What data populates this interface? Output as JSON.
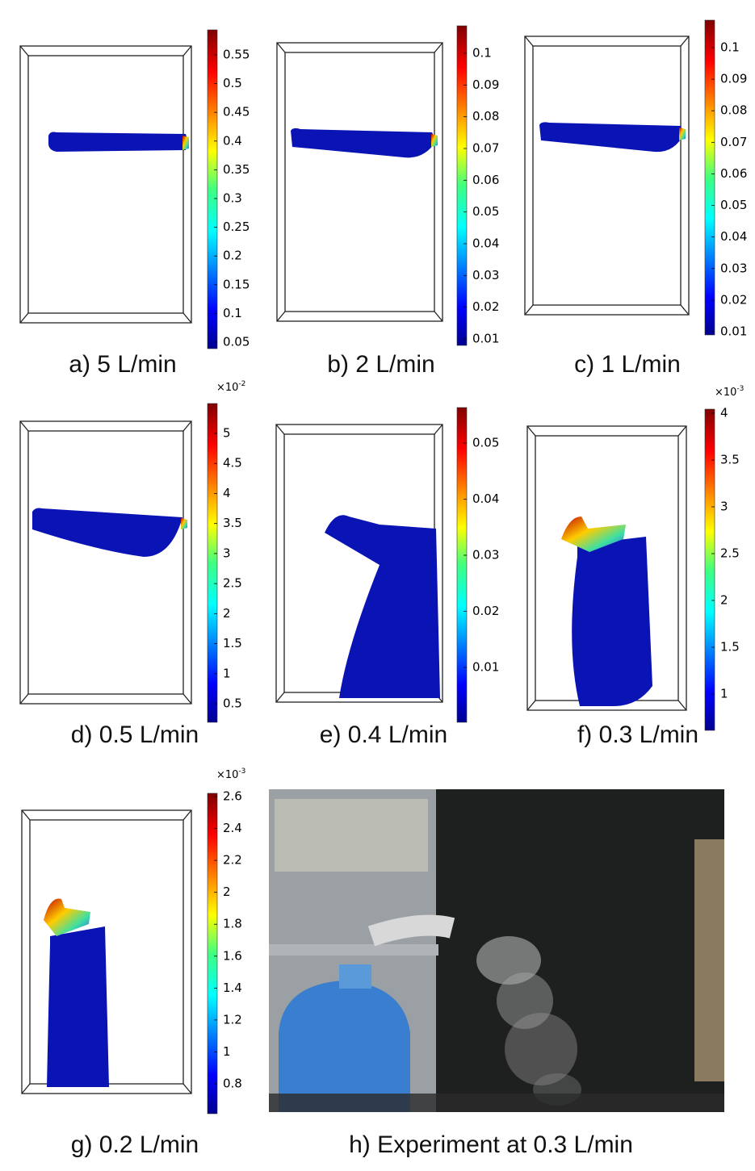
{
  "panels": [
    {
      "caption": "a) 5 L/min",
      "colorbar": {
        "ticks": [
          "0.55",
          "0.5",
          "0.45",
          "0.4",
          "0.35",
          "0.3",
          "0.25",
          "0.2",
          "0.15",
          "0.1",
          "0.05"
        ]
      }
    },
    {
      "caption": "b) 2 L/min",
      "colorbar": {
        "ticks": [
          "0.1",
          "0.09",
          "0.08",
          "0.07",
          "0.06",
          "0.05",
          "0.04",
          "0.03",
          "0.02",
          "0.01"
        ]
      }
    },
    {
      "caption": "c) 1 L/min",
      "colorbar": {
        "ticks": [
          "0.1",
          "0.09",
          "0.08",
          "0.07",
          "0.06",
          "0.05",
          "0.04",
          "0.03",
          "0.02",
          "0.01"
        ]
      }
    },
    {
      "caption": "d) 0.5 L/min",
      "colorbar": {
        "multiplier": {
          "base": "×10",
          "exponent": "-2"
        },
        "ticks": [
          "5",
          "4.5",
          "4",
          "3.5",
          "3",
          "2.5",
          "2",
          "1.5",
          "1",
          "0.5"
        ]
      }
    },
    {
      "caption": "e) 0.4 L/min",
      "colorbar": {
        "ticks": [
          "0.05",
          "0.04",
          "0.03",
          "0.02",
          "0.01"
        ]
      }
    },
    {
      "caption": "f) 0.3 L/min",
      "colorbar": {
        "multiplier": {
          "base": "×10",
          "exponent": "-3"
        },
        "ticks": [
          "4",
          "3.5",
          "3",
          "2.5",
          "2",
          "1.5",
          "1"
        ]
      }
    },
    {
      "caption": "g) 0.2 L/min",
      "colorbar": {
        "multiplier": {
          "base": "×10",
          "exponent": "-3"
        },
        "ticks": [
          "2.6",
          "2.4",
          "2.2",
          "2",
          "1.8",
          "1.6",
          "1.4",
          "1.2",
          "1",
          "0.8"
        ]
      }
    }
  ],
  "photo": {
    "caption": "h) Experiment at 0.3 L/min"
  }
}
